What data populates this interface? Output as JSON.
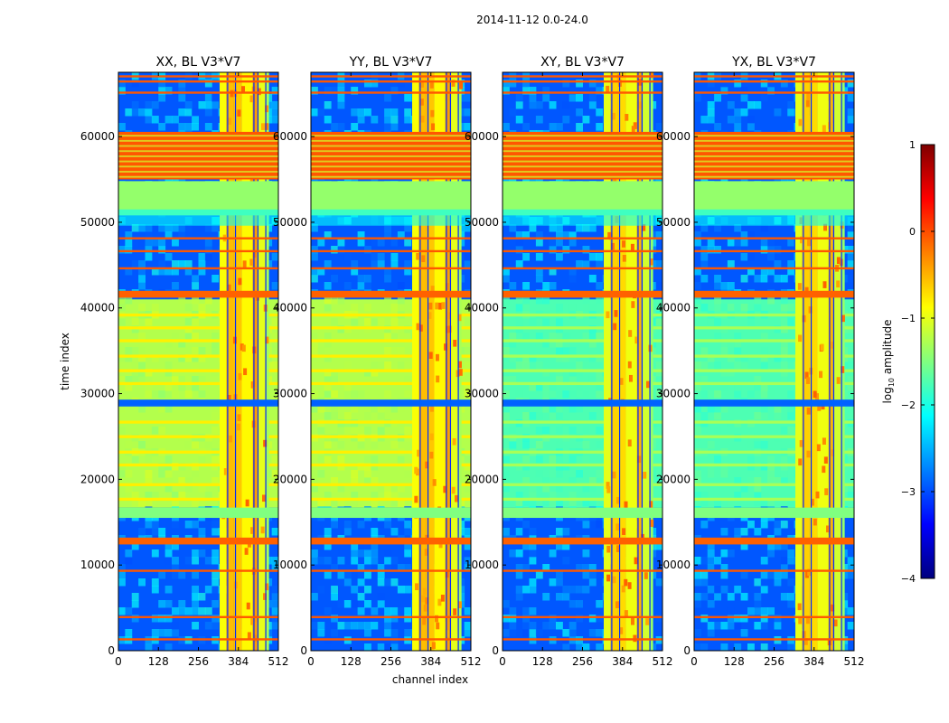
{
  "suptitle": "2014-11-12 0.0-24.0",
  "xlabel": "channel index",
  "ylabel": "time index",
  "colorbar": {
    "label": "log",
    "label_sub": "10",
    "label_rest": " amplitude",
    "ticks": [
      "1",
      "0",
      "−1",
      "−2",
      "−3",
      "−4"
    ],
    "colors": [
      "#7f0000",
      "#ff0000",
      "#ff8000",
      "#ffff00",
      "#80ff80",
      "#00ffff",
      "#0080ff",
      "#0000ff",
      "#00007f"
    ]
  },
  "chart_data": [
    {
      "type": "heatmap",
      "title": "XX, BL V3*V7",
      "xlabel": "channel index",
      "ylabel": "time index",
      "xlim": [
        0,
        512
      ],
      "ylim": [
        0,
        67500
      ],
      "xticks": [
        0,
        128,
        256,
        384,
        512
      ],
      "yticks": [
        0,
        10000,
        20000,
        30000,
        40000,
        50000,
        60000
      ],
      "clim": [
        -4,
        1
      ],
      "colormap": "jet"
    },
    {
      "type": "heatmap",
      "title": "YY, BL V3*V7",
      "xlabel": "channel index",
      "ylabel": "time index",
      "xlim": [
        0,
        512
      ],
      "ylim": [
        0,
        67500
      ],
      "xticks": [
        0,
        128,
        256,
        384,
        512
      ],
      "yticks": [
        0,
        10000,
        20000,
        30000,
        40000,
        50000,
        60000
      ],
      "clim": [
        -4,
        1
      ],
      "colormap": "jet"
    },
    {
      "type": "heatmap",
      "title": "XY, BL V3*V7",
      "xlabel": "channel index",
      "ylabel": "time index",
      "xlim": [
        0,
        512
      ],
      "ylim": [
        0,
        67500
      ],
      "xticks": [
        0,
        128,
        256,
        384,
        512
      ],
      "yticks": [
        0,
        10000,
        20000,
        30000,
        40000,
        50000,
        60000
      ],
      "clim": [
        -4,
        1
      ],
      "colormap": "jet"
    },
    {
      "type": "heatmap",
      "title": "YX, BL V3*V7",
      "xlabel": "channel index",
      "ylabel": "time index",
      "xlim": [
        0,
        512
      ],
      "ylim": [
        0,
        67500
      ],
      "xticks": [
        0,
        128,
        256,
        384,
        512
      ],
      "yticks": [
        0,
        10000,
        20000,
        30000,
        40000,
        50000,
        60000
      ],
      "clim": [
        -4,
        1
      ],
      "colormap": "jet"
    }
  ]
}
